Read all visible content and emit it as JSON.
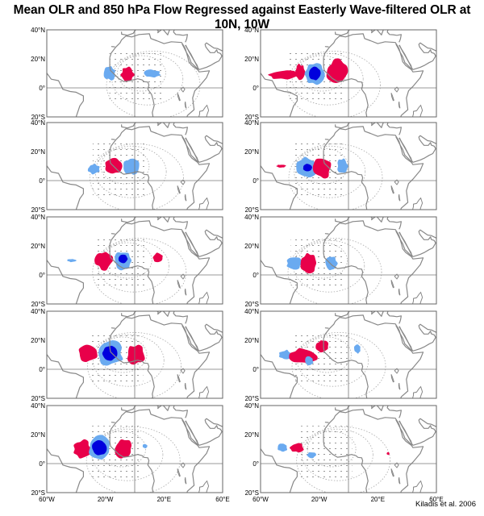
{
  "title": "Mean OLR and 850 hPa Flow Regressed against Easterly Wave-filtered OLR at 10N, 10W",
  "credit": "Kiladis et al. 2006",
  "lat_ticks": [
    "40°N",
    "20°N",
    "0°",
    "20°S"
  ],
  "lon_ticks": [
    "60°W",
    "20°W",
    "20°E",
    "60°E"
  ],
  "colors": {
    "positive_anomaly": "#e8004a",
    "negative_anomaly": "#6aaaf0",
    "strong_negative": "#0000dd",
    "coast": "#888888",
    "frame": "#666666"
  },
  "map_extent": {
    "lon": [
      -60,
      60
    ],
    "lat": [
      -20,
      40
    ]
  },
  "columns": [
    {
      "panels": [
        {
          "blobs": [
            {
              "sign": "neg",
              "lon": -17,
              "lat": 10,
              "rx": 4.0,
              "ry": 4.5
            },
            {
              "sign": "pos",
              "lon": -5,
              "lat": 9,
              "rx": 4.5,
              "ry": 5
            },
            {
              "sign": "neg",
              "lon": 12,
              "lat": 10,
              "rx": 5.5,
              "ry": 2.5
            }
          ]
        },
        {
          "blobs": [
            {
              "sign": "neg",
              "lon": -28,
              "lat": 8,
              "rx": 4,
              "ry": 3.5
            },
            {
              "sign": "pos",
              "lon": -14,
              "lat": 10,
              "rx": 6,
              "ry": 5.5
            },
            {
              "sign": "neg",
              "lon": -2,
              "lat": 10,
              "rx": 5,
              "ry": 6
            }
          ]
        },
        {
          "blobs": [
            {
              "sign": "neg",
              "lon": -43,
              "lat": 10,
              "rx": 3,
              "ry": 1
            },
            {
              "sign": "pos",
              "lon": -21,
              "lat": 10,
              "rx": 6,
              "ry": 6
            },
            {
              "sign": "neg",
              "lon": -8,
              "lat": 10,
              "rx": 6,
              "ry": 6.5
            },
            {
              "sign": "strong",
              "lon": -8,
              "lat": 11,
              "rx": 3,
              "ry": 3
            },
            {
              "sign": "pos",
              "lon": 16,
              "lat": 12,
              "rx": 3.5,
              "ry": 3
            }
          ]
        },
        {
          "blobs": [
            {
              "sign": "pos",
              "lon": -32,
              "lat": 11,
              "rx": 6.5,
              "ry": 6
            },
            {
              "sign": "neg",
              "lon": -17,
              "lat": 11,
              "rx": 8.5,
              "ry": 8.5
            },
            {
              "sign": "strong",
              "lon": -17,
              "lat": 11,
              "rx": 5,
              "ry": 5
            },
            {
              "sign": "pos",
              "lon": 1,
              "lat": 10,
              "rx": 6,
              "ry": 6.5
            }
          ]
        },
        {
          "blobs": [
            {
              "sign": "pos",
              "lon": -36,
              "lat": 10,
              "rx": 6,
              "ry": 6
            },
            {
              "sign": "neg",
              "lon": -24,
              "lat": 11,
              "rx": 7.5,
              "ry": 8
            },
            {
              "sign": "strong",
              "lon": -24,
              "lat": 11,
              "rx": 5,
              "ry": 5
            },
            {
              "sign": "pos",
              "lon": -8,
              "lat": 10,
              "rx": 6,
              "ry": 6.5
            },
            {
              "sign": "neg",
              "lon": 7,
              "lat": 12,
              "rx": 1.5,
              "ry": 1.5
            }
          ]
        }
      ]
    },
    {
      "panels": [
        {
          "blobs": [
            {
              "sign": "pos",
              "lon": -44,
              "lat": 9,
              "rx": 10,
              "ry": 3
            },
            {
              "sign": "pos",
              "lon": -33,
              "lat": 11,
              "rx": 3,
              "ry": 5
            },
            {
              "sign": "neg",
              "lon": -23,
              "lat": 10,
              "rx": 6,
              "ry": 7
            },
            {
              "sign": "strong",
              "lon": -23,
              "lat": 10,
              "rx": 4,
              "ry": 4.5
            },
            {
              "sign": "pos",
              "lon": -8,
              "lat": 11,
              "rx": 7,
              "ry": 8
            }
          ]
        },
        {
          "blobs": [
            {
              "sign": "pos",
              "lon": -46,
              "lat": 10,
              "rx": 3,
              "ry": 1
            },
            {
              "sign": "neg",
              "lon": -28,
              "lat": 9,
              "rx": 7,
              "ry": 7
            },
            {
              "sign": "strong",
              "lon": -28,
              "lat": 9,
              "rx": 3,
              "ry": 2.5
            },
            {
              "sign": "pos",
              "lon": -18,
              "lat": 9,
              "rx": 6,
              "ry": 7
            },
            {
              "sign": "neg",
              "lon": -4,
              "lat": 10,
              "rx": 3.5,
              "ry": 5
            }
          ]
        },
        {
          "blobs": [
            {
              "sign": "neg",
              "lon": -37,
              "lat": 8,
              "rx": 5,
              "ry": 4
            },
            {
              "sign": "pos",
              "lon": -27,
              "lat": 8,
              "rx": 5.5,
              "ry": 7
            },
            {
              "sign": "neg",
              "lon": -12,
              "lat": 8,
              "rx": 4,
              "ry": 5
            }
          ]
        },
        {
          "blobs": [
            {
              "sign": "neg",
              "lon": -43,
              "lat": 10,
              "rx": 4,
              "ry": 3
            },
            {
              "sign": "pos",
              "lon": -31,
              "lat": 9,
              "rx": 10,
              "ry": 5
            },
            {
              "sign": "pos",
              "lon": -18,
              "lat": 16,
              "rx": 4,
              "ry": 4
            },
            {
              "sign": "neg",
              "lon": -27,
              "lat": 6,
              "rx": 3,
              "ry": 3
            },
            {
              "sign": "neg",
              "lon": 6,
              "lat": 14,
              "rx": 2,
              "ry": 3
            }
          ]
        },
        {
          "blobs": [
            {
              "sign": "neg",
              "lon": -45,
              "lat": 11,
              "rx": 3,
              "ry": 3
            },
            {
              "sign": "pos",
              "lon": -35,
              "lat": 11,
              "rx": 4.5,
              "ry": 3
            },
            {
              "sign": "neg",
              "lon": -25,
              "lat": 6,
              "rx": 3,
              "ry": 2
            },
            {
              "sign": "pos",
              "lon": 27,
              "lat": 7,
              "rx": 1,
              "ry": 1
            }
          ]
        }
      ]
    }
  ]
}
